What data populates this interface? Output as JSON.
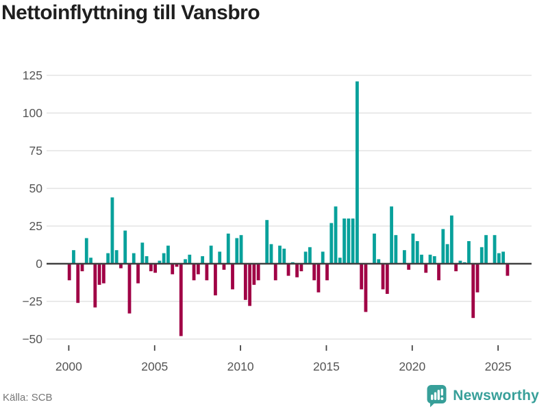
{
  "title": "Nettoinflyttning till Vansbro",
  "source": "Källa: SCB",
  "brand": {
    "name": "Newsworthy",
    "color": "#379f99"
  },
  "colors": {
    "positive_bar": "#08a19b",
    "negative_bar": "#a00045",
    "axis_line": "#3f3f3f",
    "gridline": "#e4e4e4",
    "tick_label": "#555555"
  },
  "chart_data": {
    "type": "bar",
    "title": "Nettoinflyttning till Vansbro",
    "xlabel": "",
    "ylabel": "",
    "frequency": "quarterly",
    "start": "2000Q1",
    "end": "2025Q3",
    "values": [
      -11,
      9,
      -26,
      -5,
      17,
      4,
      -29,
      -14,
      -13,
      7,
      44,
      9,
      -3,
      22,
      -33,
      7,
      -13,
      14,
      5,
      -5,
      -6,
      2,
      7,
      12,
      -7,
      -2,
      -48,
      3,
      6,
      -11,
      -7,
      5,
      -11,
      12,
      -21,
      8,
      -4,
      20,
      -17,
      17,
      19,
      -24,
      -28,
      -14,
      -11,
      0,
      29,
      13,
      -11,
      12,
      10,
      -8,
      1,
      -9,
      -5,
      8,
      11,
      -11,
      -19,
      8,
      -11,
      27,
      38,
      4,
      30,
      30,
      30,
      121,
      -17,
      -32,
      0,
      20,
      3,
      -17,
      -20,
      38,
      19,
      0,
      9,
      -4,
      20,
      15,
      6,
      -6,
      6,
      5,
      -11,
      23,
      13,
      32,
      -5,
      2,
      1,
      15,
      -36,
      -19,
      11,
      19,
      0,
      19,
      7,
      8,
      -8
    ],
    "x_tick_labels": [
      "2000",
      "2005",
      "2010",
      "2015",
      "2020",
      "2025"
    ],
    "y_ticks": [
      125,
      100,
      75,
      50,
      25,
      0,
      -25,
      -50
    ],
    "y_tick_labels": [
      "125",
      "100",
      "75",
      "50",
      "25",
      "0",
      "−25",
      "−50"
    ],
    "ylim": [
      -50,
      125
    ],
    "grid": "horizontal",
    "legend": "none"
  }
}
